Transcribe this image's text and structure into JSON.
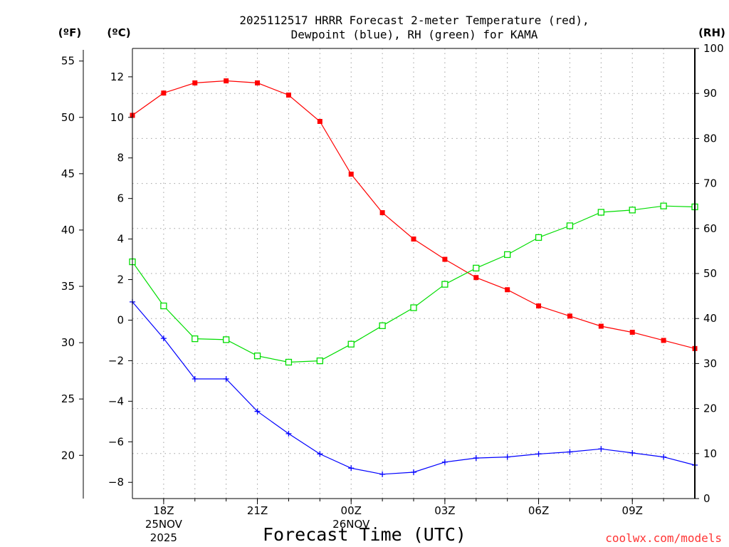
{
  "chart_data": {
    "type": "line",
    "title_lines": [
      "2025112517 HRRR Forecast 2-meter Temperature (red),",
      "Dewpoint (blue), RH (green) for KAMA"
    ],
    "xlabel": "Forecast Time (UTC)",
    "credit": "coolwx.com/models",
    "units": {
      "fahrenheit": "(ºF)",
      "celsius": "(ºC)",
      "rh": "(RH)"
    },
    "x_hours": [
      17,
      18,
      19,
      20,
      21,
      22,
      23,
      24,
      25,
      26,
      27,
      28,
      29,
      30,
      31,
      32,
      33,
      34,
      35
    ],
    "xlim": [
      17,
      35
    ],
    "x_ticks": [
      {
        "hour": 18,
        "lines": [
          "18Z",
          "25NOV",
          "2025"
        ]
      },
      {
        "hour": 21,
        "lines": [
          "21Z"
        ]
      },
      {
        "hour": 24,
        "lines": [
          "00Z",
          "26NOV"
        ]
      },
      {
        "hour": 27,
        "lines": [
          "03Z"
        ]
      },
      {
        "hour": 30,
        "lines": [
          "06Z"
        ]
      },
      {
        "hour": 33,
        "lines": [
          "09Z"
        ]
      }
    ],
    "y_left_celsius": {
      "min": -8.8,
      "max": 13.4,
      "ticks": [
        12,
        10,
        8,
        6,
        4,
        2,
        0,
        -2,
        -4,
        -6,
        -8
      ],
      "tick_labels": [
        "12",
        "10",
        "8",
        "6",
        "4",
        "2",
        "0",
        "−2",
        "−4",
        "−6",
        "−8"
      ]
    },
    "y_left_fahrenheit": {
      "ticks": [
        55,
        50,
        45,
        40,
        35,
        30,
        25,
        20
      ],
      "tick_labels": [
        "55",
        "50",
        "45",
        "40",
        "35",
        "30",
        "25",
        "20"
      ]
    },
    "y_right_rh": {
      "min": 0,
      "max": 100,
      "ticks": [
        100,
        90,
        80,
        70,
        60,
        50,
        40,
        30,
        20,
        10,
        0
      ],
      "tick_labels": [
        "100",
        "90",
        "80",
        "70",
        "60",
        "50",
        "40",
        "30",
        "20",
        "10",
        "0"
      ]
    },
    "series": [
      {
        "name": "Temperature",
        "axis": "celsius",
        "color": "#ff0000",
        "marker": "filled-square",
        "values": [
          10.1,
          11.2,
          11.7,
          11.8,
          11.7,
          11.1,
          9.8,
          7.2,
          5.3,
          4.0,
          3.0,
          2.1,
          1.5,
          0.7,
          0.2,
          -0.3,
          -0.6,
          -1.0,
          -1.4
        ]
      },
      {
        "name": "Dewpoint",
        "axis": "celsius",
        "color": "#0000ff",
        "marker": "plus",
        "values": [
          0.9,
          -0.9,
          -2.9,
          -2.9,
          -4.5,
          -5.6,
          -6.6,
          -7.3,
          -7.6,
          -7.5,
          -7.0,
          -6.8,
          -6.75,
          -6.6,
          -6.5,
          -6.35,
          -6.55,
          -6.75,
          -7.15
        ]
      },
      {
        "name": "RH",
        "axis": "rh",
        "color": "#00dd00",
        "marker": "open-square",
        "values": [
          52.6,
          42.8,
          35.5,
          35.3,
          31.7,
          30.3,
          30.6,
          34.3,
          38.4,
          42.4,
          47.6,
          51.2,
          54.2,
          58.0,
          60.6,
          63.6,
          64.1,
          65.0,
          64.8
        ]
      }
    ]
  }
}
